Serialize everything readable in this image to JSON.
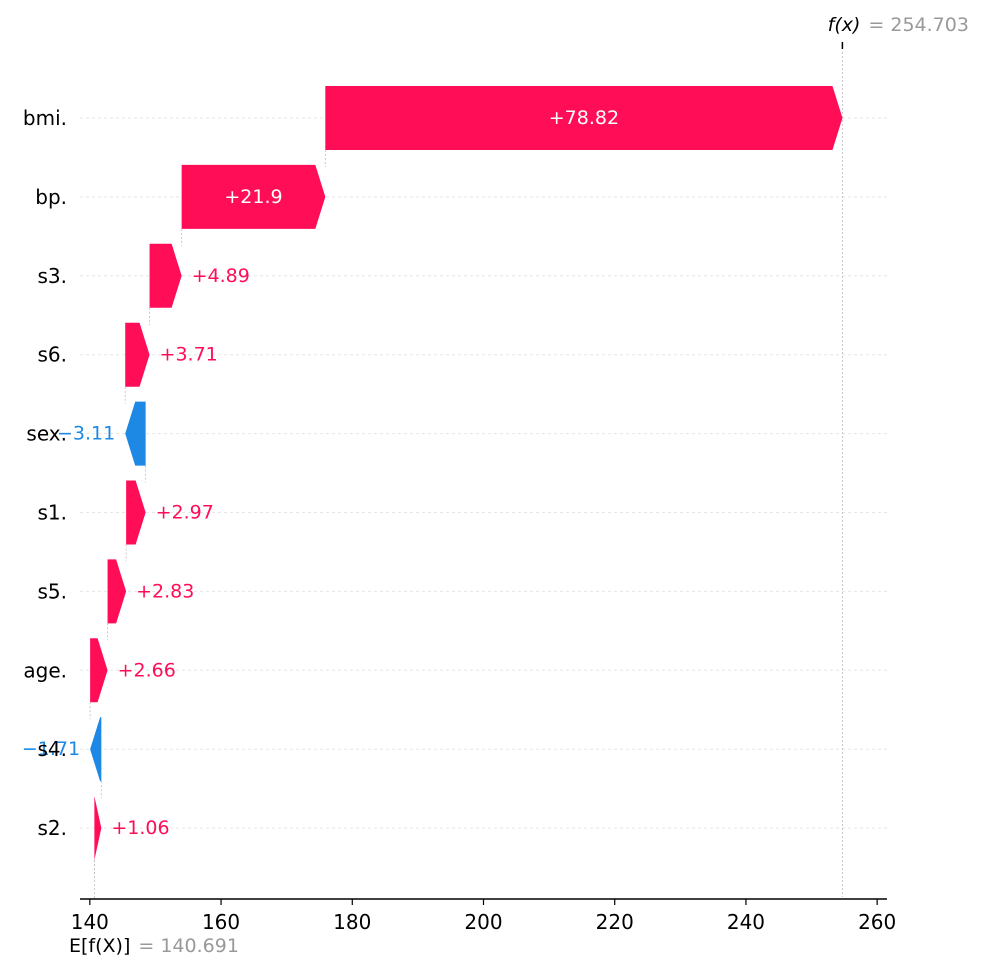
{
  "chart_data": {
    "type": "waterfall",
    "title": "",
    "xlabel": "",
    "ylabel": "",
    "base_value": 140.691,
    "base_label_text": "E[f(X)]",
    "base_value_text": "= 140.691",
    "output_value": 254.703,
    "output_label_text": "f(x)",
    "output_value_text": "= 254.703",
    "xlim": [
      138.5,
      261.5
    ],
    "x_ticks": [
      140,
      160,
      180,
      200,
      220,
      240,
      260
    ],
    "x_tick_labels": [
      "140",
      "160",
      "180",
      "200",
      "220",
      "240",
      "260"
    ],
    "grid": "dotted horizontal per feature",
    "features": [
      {
        "name": "bmi.",
        "value": 78.82,
        "label": "+78.82"
      },
      {
        "name": "bp.",
        "value": 21.9,
        "label": "+21.9"
      },
      {
        "name": "s3.",
        "value": 4.89,
        "label": "+4.89"
      },
      {
        "name": "s6.",
        "value": 3.71,
        "label": "+3.71"
      },
      {
        "name": "sex.",
        "value": -3.11,
        "label": "−3.11"
      },
      {
        "name": "s1.",
        "value": 2.97,
        "label": "+2.97"
      },
      {
        "name": "s5.",
        "value": 2.83,
        "label": "+2.83"
      },
      {
        "name": "age.",
        "value": 2.66,
        "label": "+2.66"
      },
      {
        "name": "s4.",
        "value": -1.71,
        "label": "−1.71"
      },
      {
        "name": "s2.",
        "value": 1.06,
        "label": "+1.06"
      }
    ]
  },
  "colors": {
    "positive": "#ff0d57",
    "negative": "#1e88e5",
    "axis": "#000000",
    "grid": "#e6e6e6",
    "connector": "#bbbbbb",
    "annotation_value": "#999999"
  }
}
